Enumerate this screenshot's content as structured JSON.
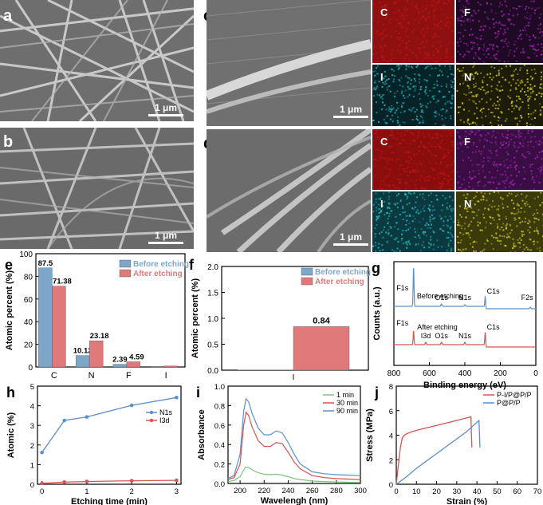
{
  "panel_letters": {
    "a": "a",
    "b": "b",
    "c": "c",
    "d": "d",
    "e": "e",
    "f": "f",
    "g": "g",
    "h": "h",
    "i": "i",
    "j": "j"
  },
  "scale_label": "1 μm",
  "eds": {
    "c": [
      {
        "element": "C",
        "color": "#c01414"
      },
      {
        "element": "F",
        "color": "#a020b0"
      },
      {
        "element": "I",
        "color": "#20b0b8"
      },
      {
        "element": "N",
        "color": "#c8c020"
      }
    ],
    "d": [
      {
        "element": "C",
        "color": "#c01414"
      },
      {
        "element": "F",
        "color": "#a020b0"
      },
      {
        "element": "I",
        "color": "#20b0b8"
      },
      {
        "element": "N",
        "color": "#c8c020"
      }
    ]
  },
  "colors": {
    "blue": "#7ea6c9",
    "red": "#e07a7a",
    "green": "#7ec47e",
    "line_blue": "#5b8fcf",
    "line_red": "#d9534f"
  },
  "chart_data": [
    {
      "id": "e",
      "type": "bar",
      "ylabel": "Atomic percent (%)",
      "categories": [
        "C",
        "N",
        "F",
        "I"
      ],
      "yticks": [
        "0",
        "20",
        "40",
        "60",
        "80",
        "100"
      ],
      "ylim": [
        0,
        100
      ],
      "series": [
        {
          "name": "Before etching",
          "values": [
            87.5,
            10.12,
            2.39,
            0
          ],
          "labels": [
            "87.5",
            "10.12",
            "2.39",
            ""
          ]
        },
        {
          "name": "After etching",
          "values": [
            71.38,
            23.18,
            4.59,
            0.84
          ],
          "labels": [
            "71.38",
            "23.18",
            "4.59",
            ""
          ]
        }
      ]
    },
    {
      "id": "f",
      "type": "bar",
      "ylabel": "Atomic percent (%)",
      "categories": [
        "I"
      ],
      "yticks": [
        "0.0",
        "0.5",
        "1.0",
        "1.5",
        "2.0"
      ],
      "ylim": [
        0,
        2.0
      ],
      "series": [
        {
          "name": "Before etching",
          "values": [
            0
          ],
          "labels": [
            ""
          ]
        },
        {
          "name": "After etching",
          "values": [
            0.84
          ],
          "labels": [
            "0.84"
          ]
        }
      ]
    },
    {
      "id": "g",
      "type": "line",
      "xlabel": "Binding energy (eV)",
      "ylabel": "Counts (a.u.)",
      "xticks": [
        "800",
        "600",
        "400",
        "200",
        "0"
      ],
      "xlim": [
        800,
        0
      ],
      "series": [
        {
          "name": "Before etching",
          "color": "#5b8fcf",
          "peaks": [
            {
              "label": "F1s",
              "x": 689
            },
            {
              "label": "O1s",
              "x": 532
            },
            {
              "label": "N1s",
              "x": 400
            },
            {
              "label": "C1s",
              "x": 285
            },
            {
              "label": "F2s",
              "x": 31
            }
          ]
        },
        {
          "name": "After etching",
          "color": "#d9534f",
          "peaks": [
            {
              "label": "F1s",
              "x": 689
            },
            {
              "label": "I3d",
              "x": 620
            },
            {
              "label": "O1s",
              "x": 532
            },
            {
              "label": "N1s",
              "x": 400
            },
            {
              "label": "C1s",
              "x": 285
            }
          ]
        }
      ]
    },
    {
      "id": "h",
      "type": "line",
      "xlabel": "Etching time (min)",
      "ylabel": "Atomic (%)",
      "xticks": [
        "0",
        "1",
        "2",
        "3"
      ],
      "yticks": [
        "0",
        "1",
        "2",
        "3",
        "4",
        "5"
      ],
      "xlim": [
        -0.1,
        3.1
      ],
      "ylim": [
        0,
        5
      ],
      "series": [
        {
          "name": "N1s",
          "color": "#5b8fcf",
          "x": [
            0,
            0.5,
            1,
            2,
            3
          ],
          "y": [
            1.62,
            3.25,
            3.43,
            4.02,
            4.42
          ]
        },
        {
          "name": "I3d",
          "color": "#d9534f",
          "x": [
            0,
            0.5,
            1,
            2,
            3
          ],
          "y": [
            0.05,
            0.11,
            0.14,
            0.18,
            0.2
          ]
        }
      ]
    },
    {
      "id": "i",
      "type": "line",
      "xlabel": "Wavelengh (nm)",
      "ylabel": "Absorbance",
      "xticks": [
        "200",
        "220",
        "240",
        "260",
        "280",
        "300"
      ],
      "yticks": [
        "0.0",
        "0.2",
        "0.4",
        "0.6",
        "0.8",
        "1.0"
      ],
      "xlim": [
        190,
        300
      ],
      "ylim": [
        0,
        1.0
      ],
      "series": [
        {
          "name": "1 min",
          "color": "#7ec47e",
          "x": [
            190,
            195,
            200,
            203,
            205,
            207,
            210,
            215,
            220,
            225,
            230,
            235,
            240,
            245,
            250,
            260,
            270,
            280,
            290,
            300
          ],
          "y": [
            0.02,
            0.03,
            0.07,
            0.14,
            0.17,
            0.165,
            0.14,
            0.11,
            0.095,
            0.09,
            0.095,
            0.085,
            0.07,
            0.05,
            0.04,
            0.025,
            0.02,
            0.015,
            0.012,
            0.01
          ]
        },
        {
          "name": "30 min",
          "color": "#d9534f",
          "x": [
            190,
            195,
            200,
            203,
            205,
            207,
            210,
            215,
            220,
            225,
            230,
            235,
            240,
            245,
            250,
            260,
            270,
            280,
            290,
            300
          ],
          "y": [
            0.04,
            0.06,
            0.2,
            0.6,
            0.73,
            0.7,
            0.58,
            0.44,
            0.38,
            0.38,
            0.42,
            0.41,
            0.32,
            0.22,
            0.15,
            0.08,
            0.06,
            0.05,
            0.045,
            0.04
          ]
        },
        {
          "name": "90 min",
          "color": "#5b8fcf",
          "x": [
            190,
            195,
            200,
            203,
            205,
            207,
            210,
            215,
            220,
            225,
            230,
            235,
            240,
            245,
            250,
            260,
            270,
            280,
            290,
            300
          ],
          "y": [
            0.05,
            0.08,
            0.3,
            0.74,
            0.87,
            0.84,
            0.72,
            0.57,
            0.5,
            0.5,
            0.54,
            0.52,
            0.42,
            0.3,
            0.2,
            0.12,
            0.1,
            0.09,
            0.085,
            0.08
          ]
        }
      ]
    },
    {
      "id": "j",
      "type": "line",
      "xlabel": "Strain (%)",
      "ylabel": "Stress (MPa)",
      "xticks": [
        "0",
        "10",
        "20",
        "30",
        "40",
        "50",
        "60",
        "70"
      ],
      "yticks": [
        "0",
        "2",
        "4",
        "6",
        "8"
      ],
      "xlim": [
        0,
        70
      ],
      "ylim": [
        0,
        8
      ],
      "series": [
        {
          "name": "P-I/P@P/P",
          "color": "#d9534f",
          "x": [
            0,
            1,
            2,
            3,
            4,
            5,
            7,
            10,
            20,
            30,
            37,
            37.3,
            37.5
          ],
          "y": [
            0,
            1.5,
            3.0,
            3.8,
            4.0,
            4.1,
            4.25,
            4.4,
            4.8,
            5.2,
            5.5,
            4.0,
            3.0
          ]
        },
        {
          "name": "P@P/P",
          "color": "#5b8fcf",
          "x": [
            0,
            5,
            10,
            15,
            20,
            25,
            30,
            35,
            39,
            41,
            41.3,
            41.5
          ],
          "y": [
            0,
            0.6,
            1.3,
            1.9,
            2.5,
            3.1,
            3.7,
            4.3,
            4.9,
            5.2,
            4.0,
            3.0
          ]
        }
      ]
    }
  ]
}
